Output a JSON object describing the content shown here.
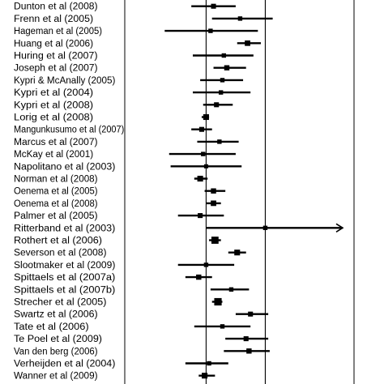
{
  "chart_data": {
    "type": "forest",
    "title": "",
    "xlabel": "",
    "ylabel": "",
    "xlim": [
      -0.55,
      1.0
    ],
    "reference_lines": [
      0,
      0.4
    ],
    "colors": {
      "marks": "#000000",
      "background": "#ffffff"
    },
    "studies": [
      {
        "label": "",
        "estimate": null,
        "lower": null,
        "upper": null,
        "weight": 0
      },
      {
        "label": "Dunton et al (2008)",
        "estimate": 0.05,
        "lower": -0.1,
        "upper": 0.2,
        "weight": 1.2
      },
      {
        "label": "Frenn et al (2005)",
        "estimate": 0.23,
        "lower": 0.04,
        "upper": 0.45,
        "weight": 1.0
      },
      {
        "label": "Hageman et al (2005)",
        "estimate": 0.03,
        "lower": -0.28,
        "upper": 0.35,
        "weight": 1.0
      },
      {
        "label": "Huang et al (2006)",
        "estimate": 0.28,
        "lower": 0.21,
        "upper": 0.37,
        "weight": 1.4
      },
      {
        "label": "Huring et al (2007)",
        "estimate": 0.12,
        "lower": -0.09,
        "upper": 0.32,
        "weight": 1.0
      },
      {
        "label": "Joseph et al (2007)",
        "estimate": 0.14,
        "lower": 0.05,
        "upper": 0.27,
        "weight": 1.3
      },
      {
        "label": "Kypri & McAnally (2005)",
        "estimate": 0.11,
        "lower": -0.04,
        "upper": 0.25,
        "weight": 1.0
      },
      {
        "label": "Kypri et al (2004)",
        "estimate": 0.1,
        "lower": -0.09,
        "upper": 0.3,
        "weight": 1.0
      },
      {
        "label": "Kypri et al (2008)",
        "estimate": 0.07,
        "lower": -0.02,
        "upper": 0.18,
        "weight": 1.2
      },
      {
        "label": "Lorig et al (2008)",
        "estimate": 0.0,
        "lower": -0.03,
        "upper": 0.02,
        "weight": 1.5
      },
      {
        "label": "Mangunkusumo et al (2007)",
        "estimate": -0.03,
        "lower": -0.1,
        "upper": 0.04,
        "weight": 1.2
      },
      {
        "label": "Marcus et al (2007)",
        "estimate": 0.09,
        "lower": -0.06,
        "upper": 0.22,
        "weight": 1.0
      },
      {
        "label": "McKay et al (2001)",
        "estimate": -0.02,
        "lower": -0.25,
        "upper": 0.2,
        "weight": 1.0
      },
      {
        "label": "Napolitano et al (2003)",
        "estimate": 0.0,
        "lower": -0.24,
        "upper": 0.24,
        "weight": 0.9
      },
      {
        "label": "Norman et al (2008)",
        "estimate": -0.04,
        "lower": -0.08,
        "upper": 0.01,
        "weight": 1.5
      },
      {
        "label": "Oenema et al (2005)",
        "estimate": 0.05,
        "lower": -0.01,
        "upper": 0.13,
        "weight": 1.3
      },
      {
        "label": "Oenema et al (2008)",
        "estimate": 0.05,
        "lower": 0.0,
        "upper": 0.1,
        "weight": 1.4
      },
      {
        "label": "Palmer et al (2005)",
        "estimate": -0.04,
        "lower": -0.19,
        "upper": 0.12,
        "weight": 1.2
      },
      {
        "label": "Ritterband et al (2003)",
        "estimate": 0.4,
        "lower": 0.0,
        "upper": 0.94,
        "weight": 1.0
      },
      {
        "label": "Rothert et al (2006)",
        "estimate": 0.06,
        "lower": 0.02,
        "upper": 0.1,
        "weight": 2.0
      },
      {
        "label": "Severson et al (2008)",
        "estimate": 0.21,
        "lower": 0.15,
        "upper": 0.27,
        "weight": 1.5
      },
      {
        "label": "Slootmaker et al (2009)",
        "estimate": 0.0,
        "lower": -0.19,
        "upper": 0.19,
        "weight": 1.0
      },
      {
        "label": "Spittaels et al (2007a)",
        "estimate": -0.05,
        "lower": -0.14,
        "upper": 0.04,
        "weight": 1.3
      },
      {
        "label": "Spittaels et al (2007b)",
        "estimate": 0.17,
        "lower": 0.03,
        "upper": 0.29,
        "weight": 1.0
      },
      {
        "label": "Strecher et al (2005)",
        "estimate": 0.08,
        "lower": 0.04,
        "upper": 0.11,
        "weight": 2.1
      },
      {
        "label": "Swartz et al (2006)",
        "estimate": 0.3,
        "lower": 0.2,
        "upper": 0.42,
        "weight": 1.2
      },
      {
        "label": "Tate et al (2006)",
        "estimate": 0.11,
        "lower": -0.08,
        "upper": 0.3,
        "weight": 1.0
      },
      {
        "label": "Te Poel et al (2009)",
        "estimate": 0.27,
        "lower": 0.13,
        "upper": 0.42,
        "weight": 1.2
      },
      {
        "label": "Van den berg (2006)",
        "estimate": 0.29,
        "lower": 0.12,
        "upper": 0.43,
        "weight": 1.3
      },
      {
        "label": "Verheijden et al (2004)",
        "estimate": 0.02,
        "lower": -0.14,
        "upper": 0.15,
        "weight": 1.0
      },
      {
        "label": "Wanner et al (2009)",
        "estimate": -0.01,
        "lower": -0.05,
        "upper": 0.06,
        "weight": 1.5
      }
    ]
  }
}
